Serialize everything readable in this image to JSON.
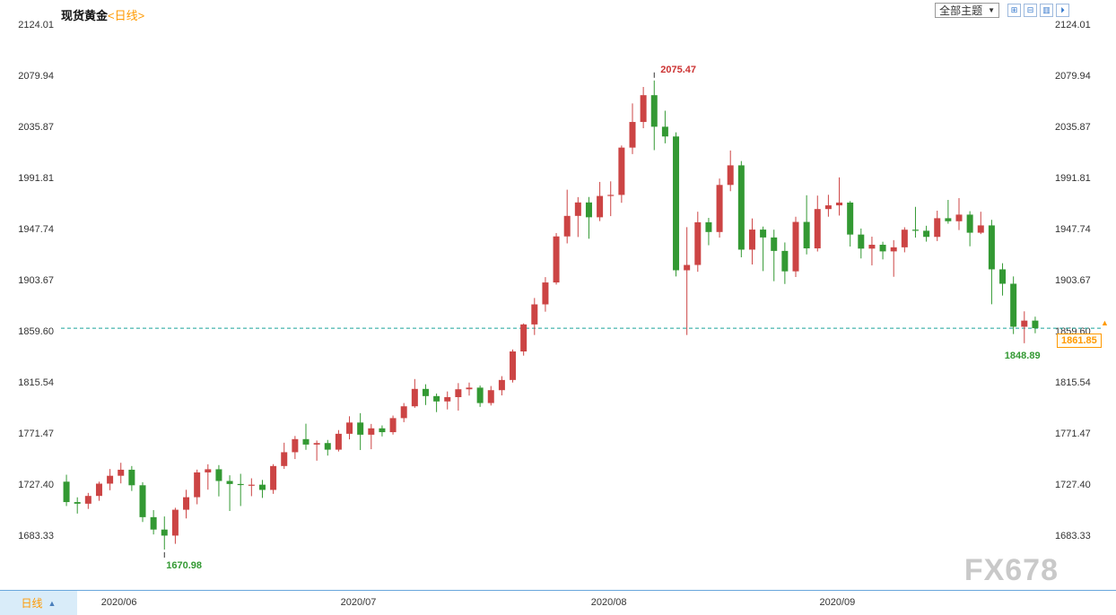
{
  "header": {
    "title": "现货黄金",
    "period_tag": "<日线>",
    "toolbar": {
      "themes_dropdown_label": "全部主题",
      "dropdown_arrow": "▼",
      "icons": [
        {
          "name": "grid-layout-icon",
          "glyph": "⊞"
        },
        {
          "name": "horizontal-split-icon",
          "glyph": "⊟"
        },
        {
          "name": "vertical-split-icon",
          "glyph": "▥"
        },
        {
          "name": "forward-icon",
          "glyph": "⏵"
        }
      ]
    }
  },
  "bottom_bar": {
    "tab_label": "日线",
    "tab_arrow": "▲"
  },
  "watermark": "FX678",
  "colors": {
    "accent_orange": "#ff9900",
    "icon_blue": "#3377cc",
    "tab_bg": "#d9ecf9",
    "bottom_line": "#6aa7dc",
    "watermark": "#c9c9c9",
    "text": "#333333"
  },
  "chart_data": {
    "type": "candlestick",
    "instrument": "现货黄金",
    "interval": "日线",
    "grid": false,
    "ylim": [
      1683.33,
      2124.01
    ],
    "y_ticks": [
      2124.01,
      2079.94,
      2035.87,
      1991.81,
      1947.74,
      1903.67,
      1859.6,
      1815.54,
      1771.47,
      1727.4,
      1683.33
    ],
    "x_labels": [
      "2020/06",
      "2020/07",
      "2020/08",
      "2020/09"
    ],
    "annotations": {
      "peak": {
        "label": "2075.47",
        "value": 2075.47,
        "date": "2020-08-07"
      },
      "trough": {
        "label": "1670.98",
        "value": 1670.98,
        "date": "2020-06-05"
      },
      "recent_low": {
        "label": "1848.89",
        "value": 1848.89,
        "date": "2020-09-24"
      },
      "current_price": {
        "label": "1861.85",
        "value": 1861.85,
        "arrow": "▲"
      },
      "reference_level": 1859.6
    },
    "colors": {
      "up": "#cc4444",
      "down": "#339933",
      "reference_line": "#1aa29a",
      "current_badge": "#ff9900",
      "annotation_up": "#cc3333",
      "annotation_down": "#339933"
    },
    "candles": [
      [
        "2020-05-25",
        1729.5,
        1735.5,
        1708.5,
        1711.9
      ],
      [
        "2020-05-26",
        1711.9,
        1716.0,
        1702.0,
        1710.5
      ],
      [
        "2020-05-27",
        1710.5,
        1719.8,
        1706.0,
        1717.2
      ],
      [
        "2020-05-28",
        1717.2,
        1729.5,
        1713.0,
        1727.8
      ],
      [
        "2020-05-29",
        1727.8,
        1740.4,
        1722.1,
        1734.6
      ],
      [
        "2020-06-01",
        1734.6,
        1745.8,
        1728.0,
        1739.8
      ],
      [
        "2020-06-02",
        1739.8,
        1743.0,
        1721.5,
        1726.4
      ],
      [
        "2020-06-03",
        1726.4,
        1729.0,
        1694.7,
        1698.9
      ],
      [
        "2020-06-04",
        1698.9,
        1705.0,
        1684.0,
        1688.2
      ],
      [
        "2020-06-05",
        1688.2,
        1699.5,
        1670.98,
        1683.0
      ],
      [
        "2020-06-08",
        1683.0,
        1707.0,
        1675.9,
        1705.3
      ],
      [
        "2020-06-09",
        1705.3,
        1722.5,
        1697.8,
        1716.1
      ],
      [
        "2020-06-10",
        1716.1,
        1739.9,
        1710.0,
        1737.5
      ],
      [
        "2020-06-11",
        1737.5,
        1744.5,
        1722.6,
        1740.2
      ],
      [
        "2020-06-12",
        1740.2,
        1743.8,
        1716.8,
        1730.1
      ],
      [
        "2020-06-15",
        1730.1,
        1735.0,
        1704.2,
        1727.5
      ],
      [
        "2020-06-16",
        1727.5,
        1736.3,
        1708.5,
        1726.8
      ],
      [
        "2020-06-17",
        1726.8,
        1732.4,
        1717.0,
        1726.9
      ],
      [
        "2020-06-18",
        1726.9,
        1731.0,
        1715.5,
        1722.4
      ],
      [
        "2020-06-19",
        1722.4,
        1744.6,
        1719.0,
        1743.0
      ],
      [
        "2020-06-22",
        1743.0,
        1763.1,
        1740.5,
        1754.9
      ],
      [
        "2020-06-23",
        1754.9,
        1768.9,
        1749.0,
        1766.2
      ],
      [
        "2020-06-24",
        1766.2,
        1779.5,
        1757.0,
        1761.5
      ],
      [
        "2020-06-25",
        1761.5,
        1765.0,
        1747.6,
        1762.8
      ],
      [
        "2020-06-26",
        1762.8,
        1765.5,
        1752.0,
        1757.1
      ],
      [
        "2020-06-29",
        1757.1,
        1774.0,
        1755.5,
        1770.8
      ],
      [
        "2020-06-30",
        1770.8,
        1785.9,
        1766.0,
        1780.5
      ],
      [
        "2020-07-01",
        1780.5,
        1788.6,
        1756.8,
        1770.0
      ],
      [
        "2020-07-02",
        1770.0,
        1779.3,
        1757.5,
        1775.5
      ],
      [
        "2020-07-03",
        1775.5,
        1778.0,
        1768.5,
        1772.2
      ],
      [
        "2020-07-06",
        1772.2,
        1786.5,
        1770.1,
        1784.3
      ],
      [
        "2020-07-07",
        1784.3,
        1797.3,
        1780.8,
        1794.5
      ],
      [
        "2020-07-08",
        1794.5,
        1818.0,
        1793.2,
        1809.5
      ],
      [
        "2020-07-09",
        1809.5,
        1813.5,
        1795.6,
        1803.3
      ],
      [
        "2020-07-10",
        1803.3,
        1805.5,
        1789.5,
        1798.7
      ],
      [
        "2020-07-13",
        1798.7,
        1807.3,
        1791.8,
        1802.4
      ],
      [
        "2020-07-14",
        1802.4,
        1814.5,
        1790.8,
        1809.2
      ],
      [
        "2020-07-15",
        1809.2,
        1815.0,
        1803.7,
        1810.6
      ],
      [
        "2020-07-16",
        1810.6,
        1812.4,
        1794.0,
        1797.3
      ],
      [
        "2020-07-17",
        1797.3,
        1812.0,
        1795.2,
        1808.4
      ],
      [
        "2020-07-20",
        1808.4,
        1820.5,
        1803.9,
        1817.2
      ],
      [
        "2020-07-21",
        1817.2,
        1843.5,
        1815.0,
        1841.8
      ],
      [
        "2020-07-22",
        1841.8,
        1866.0,
        1838.2,
        1865.1
      ],
      [
        "2020-07-23",
        1865.1,
        1887.9,
        1856.0,
        1882.4
      ],
      [
        "2020-07-24",
        1882.4,
        1905.9,
        1876.1,
        1901.3
      ],
      [
        "2020-07-27",
        1901.3,
        1943.9,
        1899.5,
        1941.0
      ],
      [
        "2020-07-28",
        1941.0,
        1981.3,
        1935.0,
        1958.7
      ],
      [
        "2020-07-29",
        1958.7,
        1974.9,
        1940.5,
        1970.3
      ],
      [
        "2020-07-30",
        1970.3,
        1975.0,
        1939.0,
        1957.5
      ],
      [
        "2020-07-31",
        1957.5,
        1988.0,
        1954.2,
        1975.9
      ],
      [
        "2020-08-03",
        1975.9,
        1988.5,
        1958.5,
        1976.8
      ],
      [
        "2020-08-04",
        1976.8,
        2019.4,
        1970.0,
        2017.6
      ],
      [
        "2020-08-05",
        2017.6,
        2055.7,
        2012.0,
        2039.7
      ],
      [
        "2020-08-06",
        2039.7,
        2069.9,
        2034.3,
        2062.8
      ],
      [
        "2020-08-07",
        2062.8,
        2075.47,
        2015.4,
        2035.6
      ],
      [
        "2020-08-10",
        2035.6,
        2049.4,
        2021.3,
        2027.2
      ],
      [
        "2020-08-11",
        2027.2,
        2030.8,
        1906.5,
        1911.8
      ],
      [
        "2020-08-12",
        1911.8,
        1949.0,
        1856.0,
        1916.4
      ],
      [
        "2020-08-13",
        1916.4,
        1962.3,
        1910.5,
        1953.2
      ],
      [
        "2020-08-14",
        1953.2,
        1957.0,
        1933.4,
        1944.8
      ],
      [
        "2020-08-17",
        1944.8,
        1990.9,
        1940.0,
        1985.4
      ],
      [
        "2020-08-18",
        1985.4,
        2015.1,
        1980.0,
        2002.3
      ],
      [
        "2020-08-19",
        2002.3,
        2006.0,
        1923.0,
        1929.6
      ],
      [
        "2020-08-20",
        1929.6,
        1956.5,
        1916.8,
        1946.9
      ],
      [
        "2020-08-21",
        1946.9,
        1949.5,
        1911.1,
        1940.1
      ],
      [
        "2020-08-24",
        1940.1,
        1946.8,
        1902.4,
        1928.5
      ],
      [
        "2020-08-25",
        1928.5,
        1935.8,
        1900.0,
        1910.9
      ],
      [
        "2020-08-26",
        1910.9,
        1958.0,
        1906.0,
        1953.5
      ],
      [
        "2020-08-27",
        1953.5,
        1976.5,
        1925.5,
        1930.7
      ],
      [
        "2020-08-28",
        1930.7,
        1976.2,
        1928.0,
        1964.6
      ],
      [
        "2020-08-31",
        1964.6,
        1976.9,
        1958.0,
        1967.8
      ],
      [
        "2020-09-01",
        1967.8,
        1991.9,
        1959.0,
        1970.2
      ],
      [
        "2020-09-02",
        1970.2,
        1971.5,
        1932.3,
        1942.6
      ],
      [
        "2020-09-03",
        1942.6,
        1947.8,
        1922.0,
        1930.5
      ],
      [
        "2020-09-04",
        1930.5,
        1940.8,
        1916.0,
        1933.8
      ],
      [
        "2020-09-07",
        1933.8,
        1936.4,
        1921.2,
        1928.1
      ],
      [
        "2020-09-08",
        1928.1,
        1937.8,
        1906.2,
        1931.6
      ],
      [
        "2020-09-09",
        1931.6,
        1948.9,
        1927.3,
        1946.8
      ],
      [
        "2020-09-10",
        1946.8,
        1966.5,
        1940.0,
        1945.9
      ],
      [
        "2020-09-11",
        1945.9,
        1950.2,
        1936.5,
        1940.6
      ],
      [
        "2020-09-14",
        1940.6,
        1963.2,
        1937.0,
        1956.7
      ],
      [
        "2020-09-15",
        1956.7,
        1972.5,
        1952.0,
        1954.1
      ],
      [
        "2020-09-16",
        1954.1,
        1974.0,
        1946.5,
        1959.8
      ],
      [
        "2020-09-17",
        1959.8,
        1962.8,
        1932.5,
        1944.2
      ],
      [
        "2020-09-18",
        1944.2,
        1962.3,
        1943.0,
        1950.5
      ],
      [
        "2020-09-21",
        1950.5,
        1955.3,
        1882.5,
        1912.6
      ],
      [
        "2020-09-22",
        1912.6,
        1917.9,
        1890.0,
        1900.2
      ],
      [
        "2020-09-23",
        1900.2,
        1906.5,
        1856.8,
        1863.1
      ],
      [
        "2020-09-24",
        1863.1,
        1876.4,
        1848.89,
        1868.4
      ],
      [
        "2020-09-25",
        1868.4,
        1871.8,
        1857.5,
        1861.85
      ]
    ]
  }
}
